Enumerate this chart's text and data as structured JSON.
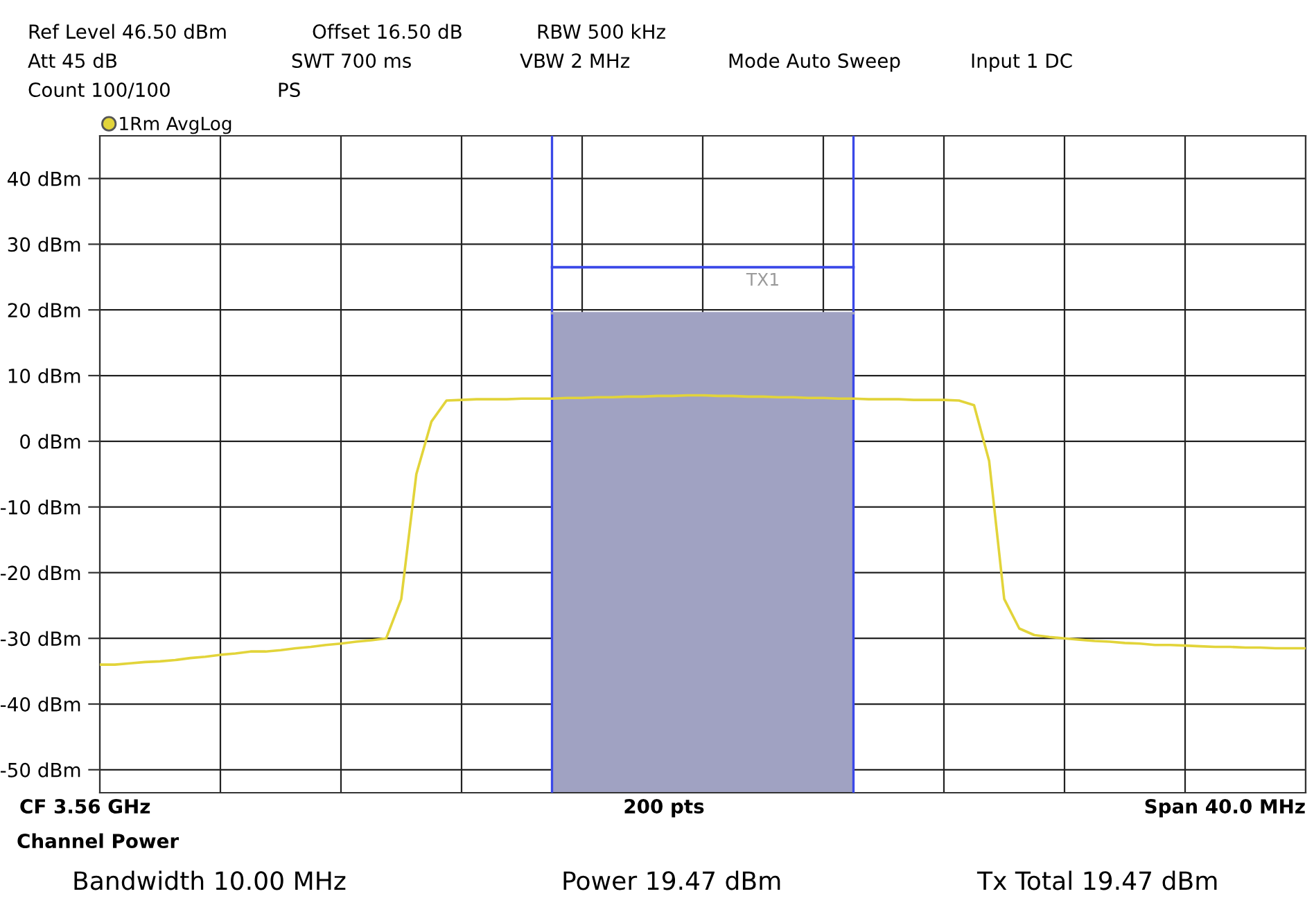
{
  "chart_data": {
    "type": "line",
    "categories": [
      null,
      null,
      null,
      null,
      null,
      null,
      null,
      null,
      null,
      null,
      null,
      null,
      null,
      null,
      null,
      null,
      null,
      null,
      null,
      null,
      null,
      null,
      null,
      null,
      null,
      null,
      null,
      null,
      null,
      null,
      null,
      null,
      null,
      null,
      null,
      null,
      null,
      null,
      null,
      null,
      null,
      null,
      null,
      null,
      null,
      null,
      null,
      null,
      null,
      null,
      null,
      null,
      null,
      null,
      null,
      null,
      null,
      null,
      null,
      null,
      null,
      null,
      null,
      null,
      null,
      null,
      null,
      null,
      null,
      null,
      null,
      null,
      null,
      null,
      null,
      null,
      null,
      null,
      null,
      null,
      null
    ],
    "ylim": [
      -53.5,
      46.5
    ],
    "yticks": [
      {
        "value": 40,
        "label": "40 dBm"
      },
      {
        "value": 30,
        "label": "30 dBm"
      },
      {
        "value": 20,
        "label": "20 dBm"
      },
      {
        "value": 10,
        "label": "10 dBm"
      },
      {
        "value": 0,
        "label": "0 dBm"
      },
      {
        "value": -10,
        "label": "-10 dBm"
      },
      {
        "value": -20,
        "label": "-20 dBm"
      },
      {
        "value": -30,
        "label": "-30 dBm"
      },
      {
        "value": -40,
        "label": "-40 dBm"
      },
      {
        "value": -50,
        "label": "-50 dBm"
      }
    ],
    "grid": true,
    "legend": "top left",
    "series": [
      {
        "type": "line",
        "color": "#a0a2c2",
        "values": [
          null,
          null,
          null,
          null,
          null,
          null,
          null,
          null,
          null,
          null,
          null,
          null,
          null,
          null,
          null,
          null,
          null,
          null,
          null,
          null,
          null,
          null,
          null,
          null,
          null,
          null,
          null,
          null,
          null,
          null,
          19.5,
          19.5,
          19.5,
          19.5,
          19.5,
          19.5,
          19.5,
          19.5,
          19.5,
          19.5,
          19.5,
          19.5,
          19.5,
          19.5,
          19.5,
          19.5,
          19.5,
          19.5,
          19.5,
          19.5,
          19.5,
          null,
          null,
          null,
          null,
          null,
          null,
          null,
          null,
          null,
          null,
          null,
          null,
          null,
          null,
          null,
          null,
          null,
          null,
          null,
          null,
          null,
          null,
          null,
          null,
          null,
          null,
          null,
          null,
          null,
          null
        ],
        "lower": [
          null,
          null,
          null,
          null,
          null,
          null,
          null,
          null,
          null,
          null,
          null,
          null,
          null,
          null,
          null,
          null,
          null,
          null,
          null,
          null,
          null,
          null,
          null,
          null,
          null,
          null,
          null,
          null,
          null,
          null,
          -53.5,
          -53.5,
          -53.5,
          -53.5,
          -53.5,
          -53.5,
          -53.5,
          -53.5,
          -53.5,
          -53.5,
          -53.5,
          -53.5,
          -53.5,
          -53.5,
          -53.5,
          -53.5,
          -53.5,
          -53.5,
          -53.5,
          -53.5,
          -53.5,
          null,
          null,
          null,
          null,
          null,
          null,
          null,
          null,
          null,
          null,
          null,
          null,
          null,
          null,
          null,
          null,
          null,
          null,
          null,
          null,
          null,
          null,
          null,
          null,
          null,
          null,
          null,
          null,
          null,
          null
        ],
        "upper": [
          null,
          null,
          null,
          null,
          null,
          null,
          null,
          null,
          null,
          null,
          null,
          null,
          null,
          null,
          null,
          null,
          null,
          null,
          null,
          null,
          null,
          null,
          null,
          null,
          null,
          null,
          null,
          null,
          null,
          null,
          19.5,
          19.5,
          19.5,
          19.5,
          19.5,
          19.5,
          19.5,
          19.5,
          19.5,
          19.5,
          19.5,
          19.5,
          19.5,
          19.5,
          19.5,
          19.5,
          19.5,
          19.5,
          19.5,
          19.5,
          19.5,
          null,
          null,
          null,
          null,
          null,
          null,
          null,
          null,
          null,
          null,
          null,
          null,
          null,
          null,
          null,
          null,
          null,
          null,
          null,
          null,
          null,
          null,
          null,
          null,
          null,
          null,
          null,
          null,
          null,
          null
        ]
      },
      {
        "type": "line",
        "name": "TX1",
        "color": "#3a48e8",
        "values": [
          null,
          null,
          null,
          null,
          null,
          null,
          null,
          null,
          null,
          null,
          null,
          null,
          null,
          null,
          null,
          null,
          null,
          null,
          null,
          null,
          null,
          null,
          null,
          null,
          null,
          null,
          null,
          null,
          null,
          null,
          26.5,
          26.5,
          26.5,
          26.5,
          26.5,
          26.5,
          26.5,
          26.5,
          26.5,
          26.5,
          26.5,
          26.5,
          26.5,
          26.5,
          26.5,
          26.5,
          26.5,
          26.5,
          26.5,
          26.5,
          26.5,
          null,
          null,
          null,
          null,
          null,
          null,
          null,
          null,
          null,
          null,
          null,
          null,
          null,
          null,
          null,
          null,
          null,
          null,
          null,
          null,
          null,
          null,
          null,
          null,
          null,
          null,
          null,
          null,
          null,
          null
        ]
      },
      {
        "name": "1Rm AvgLog",
        "color": "#e2d43a",
        "values": [
          -34,
          -34,
          -33.8,
          -33.6,
          -33.5,
          -33.3,
          -33,
          -32.8,
          -32.5,
          -32.3,
          -32,
          -32,
          -31.8,
          -31.5,
          -31.3,
          -31,
          -30.8,
          -30.5,
          -30.3,
          -30,
          -24,
          -5,
          3,
          6.2,
          6.3,
          6.4,
          6.4,
          6.4,
          6.5,
          6.5,
          6.5,
          6.6,
          6.6,
          6.7,
          6.7,
          6.8,
          6.8,
          6.9,
          6.9,
          7.0,
          7.0,
          6.9,
          6.9,
          6.8,
          6.8,
          6.7,
          6.7,
          6.6,
          6.6,
          6.5,
          6.5,
          6.4,
          6.4,
          6.4,
          6.3,
          6.3,
          6.3,
          6.2,
          5.5,
          -3,
          -24,
          -28.5,
          -29.5,
          -29.8,
          -30,
          -30.2,
          -30.4,
          -30.5,
          -30.7,
          -30.8,
          -31,
          -31,
          -31.1,
          -31.2,
          -31.3,
          -31.3,
          -31.4,
          -31.4,
          -31.5,
          -31.5,
          -31.5
        ]
      }
    ],
    "annotations": [
      "Ref Level 46.50 dBm",
      "Offset 16.50 dB",
      "RBW 500 kHz",
      "Att 45 dB",
      "SWT 700 ms",
      "VBW 2 MHz",
      "Mode Auto Sweep",
      "Input 1 DC",
      "Count 100/100",
      "PS",
      "CF 3.56 GHz",
      "200 pts",
      "Span 40.0 MHz",
      "Channel Power",
      "Bandwidth 10.00 MHz",
      "Power 19.47 dBm",
      "Tx Total 19.47 dBm"
    ]
  }
}
